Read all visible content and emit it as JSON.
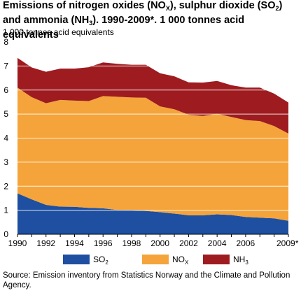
{
  "title": "Emissions of nitrogen oxides (NOX), sulphur dioxide (SO2) and ammonia (NH3). 1990-2009*. 1 000 tonnes acid equivalents",
  "title_parts": [
    {
      "t": "Emissions of nitrogen oxides (NO"
    },
    {
      "t": "X",
      "sub": true
    },
    {
      "t": "), sulphur dioxide (SO"
    },
    {
      "t": "2",
      "sub": true
    },
    {
      "t": ") and ammonia (NH"
    },
    {
      "t": "3",
      "sub": true
    },
    {
      "t": "). 1990-2009*. 1 000 tonnes acid equivalents"
    }
  ],
  "unit_label": "1 000 tonnes acid equivalents",
  "source": "Source: Emission inventory from Statistics Norway and the Climate and Pollution Agency.",
  "chart_data": {
    "type": "area",
    "stacked": true,
    "x": [
      1990,
      1991,
      1992,
      1993,
      1994,
      1995,
      1996,
      1997,
      1998,
      1999,
      2000,
      2001,
      2002,
      2003,
      2004,
      2005,
      2006,
      2007,
      2008,
      2009
    ],
    "xticks": [
      "1990",
      "1992",
      "1994",
      "1996",
      "1998",
      "2000",
      "2002",
      "2004",
      "2006",
      "2009*"
    ],
    "xtick_years": [
      1990,
      1992,
      1994,
      1996,
      1998,
      2000,
      2002,
      2004,
      2006,
      2009
    ],
    "ylim": [
      0,
      8
    ],
    "yticks": [
      0,
      1,
      2,
      3,
      4,
      5,
      6,
      7,
      8
    ],
    "grid": true,
    "legend_position": "bottom",
    "series": [
      {
        "name": "SO2",
        "label": "SO",
        "sub": "2",
        "color": "#1e4fa0",
        "values": [
          1.7,
          1.45,
          1.22,
          1.15,
          1.14,
          1.1,
          1.08,
          1.01,
          0.99,
          0.97,
          0.92,
          0.86,
          0.79,
          0.79,
          0.83,
          0.8,
          0.72,
          0.69,
          0.66,
          0.56
        ]
      },
      {
        "name": "NOX",
        "label": "NO",
        "sub": "X",
        "color": "#f4a43a",
        "values": [
          4.4,
          4.25,
          4.23,
          4.44,
          4.42,
          4.44,
          4.67,
          4.71,
          4.7,
          4.71,
          4.4,
          4.34,
          4.18,
          4.13,
          4.18,
          4.08,
          4.03,
          4.02,
          3.84,
          3.63
        ]
      },
      {
        "name": "NH3",
        "label": "NH",
        "sub": "3",
        "color": "#9e1b20",
        "values": [
          1.24,
          1.24,
          1.31,
          1.3,
          1.33,
          1.41,
          1.4,
          1.37,
          1.36,
          1.37,
          1.38,
          1.37,
          1.35,
          1.39,
          1.37,
          1.32,
          1.35,
          1.39,
          1.35,
          1.29
        ]
      }
    ]
  }
}
